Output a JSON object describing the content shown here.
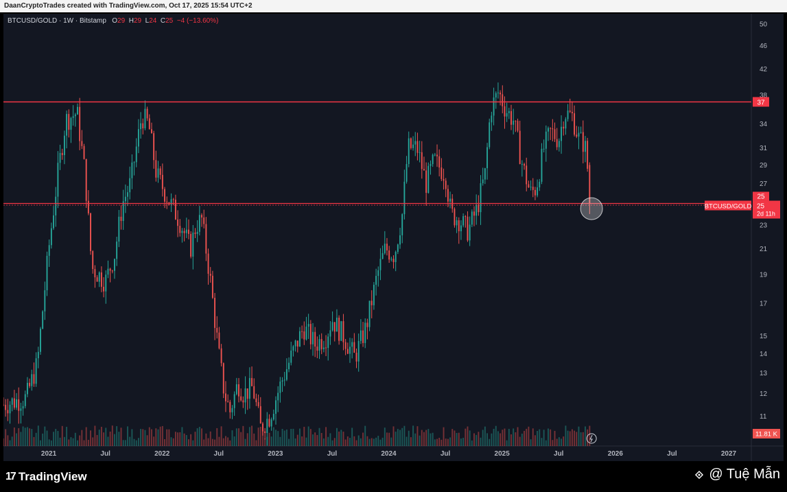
{
  "header": {
    "caption": "DaanCryptoTrades created with TradingView.com, Oct 17, 2025 15:54 UTC+2"
  },
  "legend": {
    "symbol": "BTCUSD/GOLD · 1W · Bitstamp",
    "o_label": "O",
    "o_value": "29",
    "h_label": "H",
    "h_value": "29",
    "l_label": "L",
    "l_value": "24",
    "c_label": "C",
    "c_value": "25",
    "change": "−4 (−13.60%)"
  },
  "price_label": {
    "name": "BTCUSD/GOLD",
    "value": "25",
    "countdown": "2d 11h"
  },
  "volume_label": "11.81 K",
  "footer": {
    "brand": "TradingView",
    "watermark": "@ Tuệ Mẫn"
  },
  "colors": {
    "background": "#131722",
    "up": "#26a69a",
    "down": "#ef5350",
    "resistance": "#f23645",
    "support": "#f23645",
    "axis_text": "#b2b5be"
  },
  "chart_data": {
    "type": "candlestick",
    "title": "BTCUSD/GOLD · 1W · Bitstamp",
    "scale": "log",
    "ylim": [
      9.8,
      52
    ],
    "y_ticks": [
      50,
      46,
      42,
      38,
      34,
      31,
      29,
      27,
      25,
      23,
      21,
      19,
      17,
      15,
      14,
      13,
      12,
      11
    ],
    "x_range": [
      2020.6,
      2027.2
    ],
    "x_ticks": [
      {
        "label": "2021",
        "x": 2021.0
      },
      {
        "label": "Jul",
        "x": 2021.5
      },
      {
        "label": "2022",
        "x": 2022.0
      },
      {
        "label": "Jul",
        "x": 2022.5
      },
      {
        "label": "2023",
        "x": 2023.0
      },
      {
        "label": "Jul",
        "x": 2023.5
      },
      {
        "label": "2024",
        "x": 2024.0
      },
      {
        "label": "Jul",
        "x": 2024.5
      },
      {
        "label": "2025",
        "x": 2025.0
      },
      {
        "label": "Jul",
        "x": 2025.5
      },
      {
        "label": "2026",
        "x": 2026.0
      },
      {
        "label": "Jul",
        "x": 2026.5
      },
      {
        "label": "2027",
        "x": 2027.0
      }
    ],
    "resistance_level": 37,
    "support_level": 25,
    "last_close": 25,
    "highlight_circle": {
      "x": 2025.79,
      "y": 24.5
    },
    "approx_close_path": [
      {
        "x": 2020.6,
        "y": 11.5
      },
      {
        "x": 2020.8,
        "y": 11.8
      },
      {
        "x": 2020.9,
        "y": 13.5
      },
      {
        "x": 2021.0,
        "y": 21.0
      },
      {
        "x": 2021.08,
        "y": 28.0
      },
      {
        "x": 2021.15,
        "y": 34.5
      },
      {
        "x": 2021.25,
        "y": 35.5
      },
      {
        "x": 2021.32,
        "y": 28.0
      },
      {
        "x": 2021.38,
        "y": 19.5
      },
      {
        "x": 2021.5,
        "y": 18.5
      },
      {
        "x": 2021.58,
        "y": 20.5
      },
      {
        "x": 2021.65,
        "y": 25.0
      },
      {
        "x": 2021.72,
        "y": 27.0
      },
      {
        "x": 2021.82,
        "y": 35.0
      },
      {
        "x": 2021.88,
        "y": 34.0
      },
      {
        "x": 2021.95,
        "y": 28.0
      },
      {
        "x": 2022.05,
        "y": 25.5
      },
      {
        "x": 2022.15,
        "y": 23.5
      },
      {
        "x": 2022.25,
        "y": 21.0
      },
      {
        "x": 2022.3,
        "y": 23.0
      },
      {
        "x": 2022.35,
        "y": 23.5
      },
      {
        "x": 2022.42,
        "y": 19.0
      },
      {
        "x": 2022.5,
        "y": 14.0
      },
      {
        "x": 2022.55,
        "y": 12.0
      },
      {
        "x": 2022.6,
        "y": 11.2
      },
      {
        "x": 2022.67,
        "y": 12.5
      },
      {
        "x": 2022.72,
        "y": 12.0
      },
      {
        "x": 2022.8,
        "y": 12.3
      },
      {
        "x": 2022.87,
        "y": 10.5
      },
      {
        "x": 2022.95,
        "y": 11.0
      },
      {
        "x": 2023.05,
        "y": 12.5
      },
      {
        "x": 2023.15,
        "y": 14.0
      },
      {
        "x": 2023.25,
        "y": 15.5
      },
      {
        "x": 2023.35,
        "y": 14.5
      },
      {
        "x": 2023.45,
        "y": 15.0
      },
      {
        "x": 2023.5,
        "y": 16.0
      },
      {
        "x": 2023.6,
        "y": 15.0
      },
      {
        "x": 2023.7,
        "y": 13.8
      },
      {
        "x": 2023.8,
        "y": 15.5
      },
      {
        "x": 2023.9,
        "y": 19.0
      },
      {
        "x": 2023.97,
        "y": 21.0
      },
      {
        "x": 2024.05,
        "y": 20.5
      },
      {
        "x": 2024.12,
        "y": 24.0
      },
      {
        "x": 2024.17,
        "y": 31.0
      },
      {
        "x": 2024.25,
        "y": 31.0
      },
      {
        "x": 2024.33,
        "y": 27.0
      },
      {
        "x": 2024.4,
        "y": 29.5
      },
      {
        "x": 2024.5,
        "y": 28.0
      },
      {
        "x": 2024.55,
        "y": 24.0
      },
      {
        "x": 2024.62,
        "y": 23.5
      },
      {
        "x": 2024.7,
        "y": 22.5
      },
      {
        "x": 2024.78,
        "y": 24.5
      },
      {
        "x": 2024.85,
        "y": 28.0
      },
      {
        "x": 2024.9,
        "y": 36.0
      },
      {
        "x": 2024.97,
        "y": 38.5
      },
      {
        "x": 2025.03,
        "y": 36.0
      },
      {
        "x": 2025.1,
        "y": 34.5
      },
      {
        "x": 2025.18,
        "y": 29.0
      },
      {
        "x": 2025.25,
        "y": 26.0
      },
      {
        "x": 2025.3,
        "y": 26.5
      },
      {
        "x": 2025.37,
        "y": 31.0
      },
      {
        "x": 2025.43,
        "y": 33.0
      },
      {
        "x": 2025.5,
        "y": 32.0
      },
      {
        "x": 2025.55,
        "y": 35.5
      },
      {
        "x": 2025.62,
        "y": 35.0
      },
      {
        "x": 2025.68,
        "y": 32.0
      },
      {
        "x": 2025.73,
        "y": 31.5
      },
      {
        "x": 2025.76,
        "y": 28.0
      },
      {
        "x": 2025.79,
        "y": 25.0
      }
    ]
  }
}
